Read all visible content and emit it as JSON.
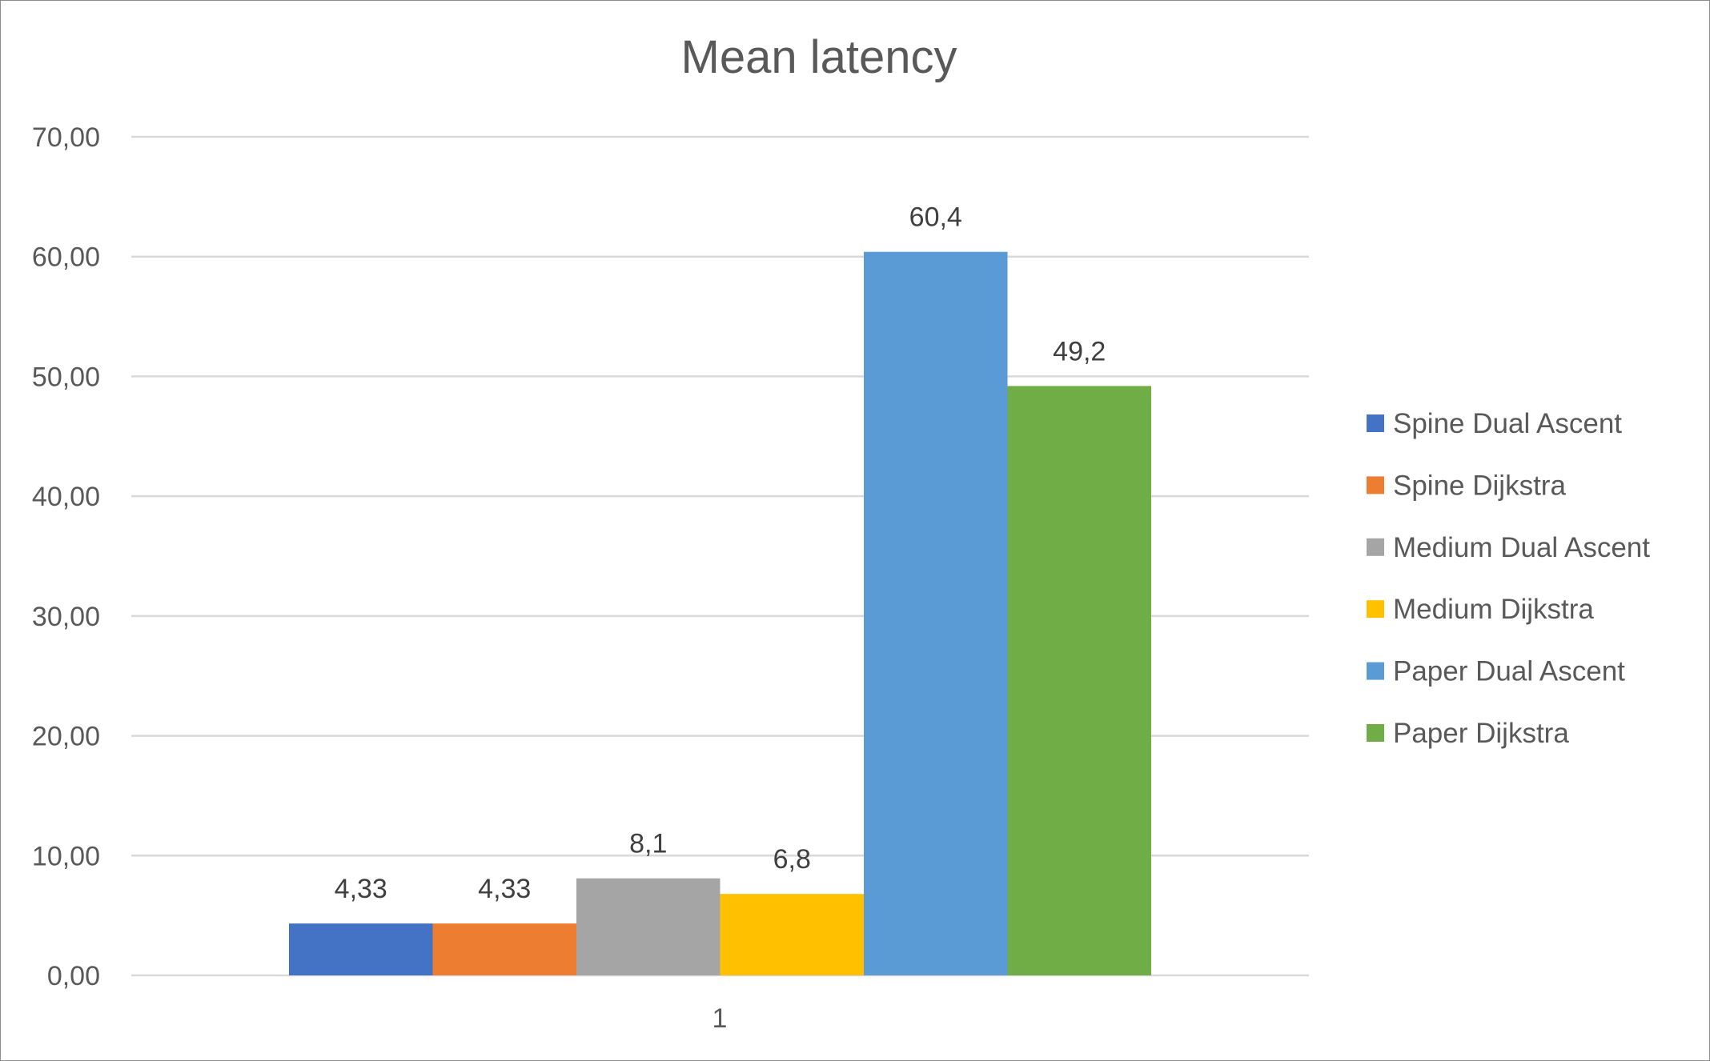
{
  "chart_data": {
    "type": "bar",
    "title": "Mean latency",
    "xlabel": "",
    "ylabel": "",
    "categories": [
      "1"
    ],
    "ylim": [
      0,
      70
    ],
    "yticks": [
      "0,00",
      "10,00",
      "20,00",
      "30,00",
      "40,00",
      "50,00",
      "60,00",
      "70,00"
    ],
    "grid": true,
    "legend_position": "right",
    "series": [
      {
        "name": "Spine Dual Ascent",
        "values": [
          4.33
        ],
        "label": "4,33",
        "color": "#4472c4"
      },
      {
        "name": "Spine Dijkstra",
        "values": [
          4.33
        ],
        "label": "4,33",
        "color": "#ed7d31"
      },
      {
        "name": "Medium Dual Ascent",
        "values": [
          8.1
        ],
        "label": "8,1",
        "color": "#a5a5a5"
      },
      {
        "name": "Medium Dijkstra",
        "values": [
          6.8
        ],
        "label": "6,8",
        "color": "#ffc000"
      },
      {
        "name": "Paper Dual Ascent",
        "values": [
          60.4
        ],
        "label": "60,4",
        "color": "#5b9bd5"
      },
      {
        "name": "Paper Dijkstra",
        "values": [
          49.2
        ],
        "label": "49,2",
        "color": "#70ad47"
      }
    ]
  }
}
